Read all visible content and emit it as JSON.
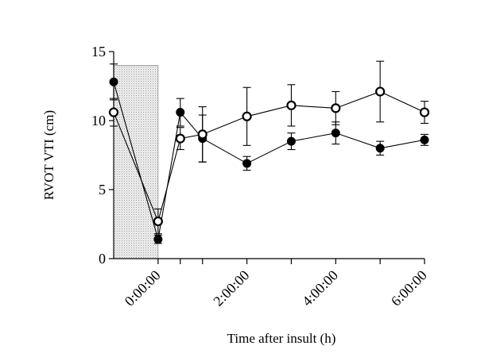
{
  "chart_data": {
    "type": "line",
    "title": "",
    "xlabel": "Time after insult (h)",
    "ylabel": "RVOT VTI (cm)",
    "ylim": [
      0,
      15
    ],
    "yticks": [
      0,
      5,
      10,
      15
    ],
    "xlim": [
      -1,
      6
    ],
    "xticks": [
      0,
      2,
      4,
      6
    ],
    "xtick_labels": [
      "0:00:00",
      "2:00:00",
      "4:00:00",
      "6:00:00"
    ],
    "minor_xticks": [
      0.5,
      1,
      3,
      5
    ],
    "shaded_region": {
      "x_start": -1,
      "x_end": 0,
      "y_top": 14
    },
    "series": [
      {
        "name": "filled",
        "marker": "filled-circle",
        "x": [
          -1,
          0,
          0.5,
          1,
          2,
          3,
          4,
          5,
          6
        ],
        "values": [
          12.8,
          1.4,
          10.6,
          8.7,
          6.9,
          8.5,
          9.1,
          8.0,
          8.6
        ],
        "errors": [
          1.3,
          0.3,
          1.0,
          1.7,
          0.5,
          0.6,
          0.8,
          0.5,
          0.4
        ]
      },
      {
        "name": "open",
        "marker": "open-circle",
        "x": [
          -1,
          0,
          0.5,
          1,
          2,
          3,
          4,
          5,
          6
        ],
        "values": [
          10.6,
          2.7,
          8.7,
          9.0,
          10.3,
          11.1,
          10.9,
          12.1,
          10.6
        ],
        "errors": [
          1.0,
          0.9,
          0.8,
          2.0,
          2.1,
          1.5,
          1.2,
          2.2,
          0.8
        ]
      }
    ]
  }
}
